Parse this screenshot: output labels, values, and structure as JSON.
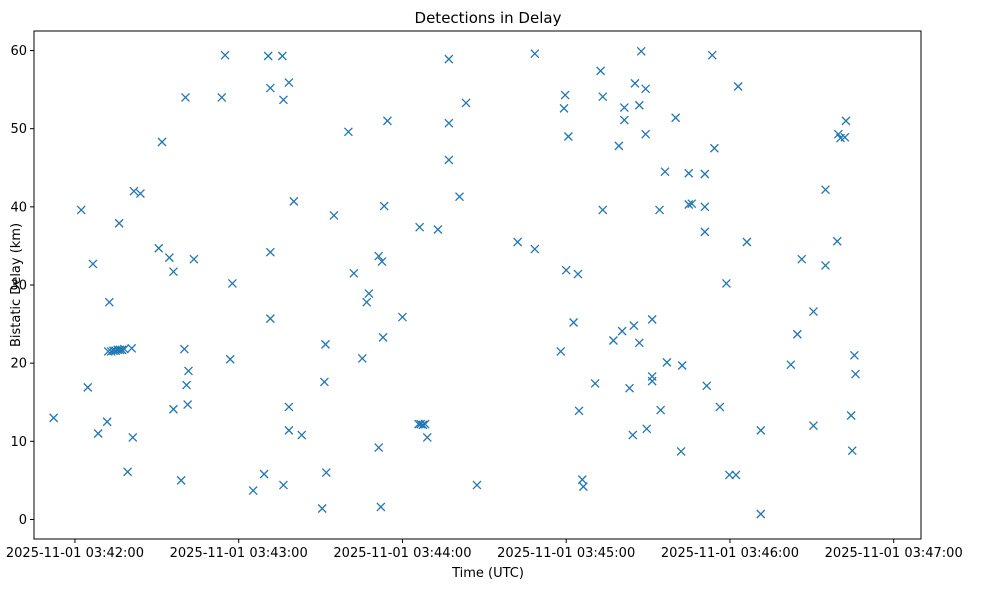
{
  "chart_data": {
    "type": "scatter",
    "title": "Detections in Delay",
    "xlabel": "Time (UTC)",
    "ylabel": "Bistatic Delay (km)",
    "marker": "x",
    "color": "#1f77b4",
    "x_unit": "seconds after 2025-11-01 03:42:00 UTC",
    "xlim": [
      -15,
      310
    ],
    "ylim": [
      -2.5,
      62.5
    ],
    "x_ticks": [
      {
        "value": 0,
        "label": "2025-11-01 03:42:00"
      },
      {
        "value": 60,
        "label": "2025-11-01 03:43:00"
      },
      {
        "value": 120,
        "label": "2025-11-01 03:44:00"
      },
      {
        "value": 180,
        "label": "2025-11-01 03:45:00"
      },
      {
        "value": 240,
        "label": "2025-11-01 03:46:00"
      },
      {
        "value": 300,
        "label": "2025-11-01 03:47:00"
      }
    ],
    "y_ticks": [
      {
        "value": 0,
        "label": "0"
      },
      {
        "value": 10,
        "label": "10"
      },
      {
        "value": 20,
        "label": "20"
      },
      {
        "value": 30,
        "label": "30"
      },
      {
        "value": 40,
        "label": "40"
      },
      {
        "value": 50,
        "label": "50"
      },
      {
        "value": 60,
        "label": "60"
      }
    ],
    "points": [
      [
        -7.8,
        13.0
      ],
      [
        2.3,
        39.6
      ],
      [
        4.7,
        16.9
      ],
      [
        6.6,
        32.7
      ],
      [
        8.5,
        11.0
      ],
      [
        11.8,
        12.5
      ],
      [
        12.6,
        27.8
      ],
      [
        12.2,
        21.5
      ],
      [
        13.3,
        21.5
      ],
      [
        14.1,
        21.6
      ],
      [
        14.9,
        21.6
      ],
      [
        15.7,
        21.7
      ],
      [
        16.5,
        21.7
      ],
      [
        17.3,
        21.7
      ],
      [
        18.1,
        21.8
      ],
      [
        16.2,
        37.9
      ],
      [
        19.3,
        6.1
      ],
      [
        20.8,
        21.9
      ],
      [
        21.2,
        10.5
      ],
      [
        21.6,
        42.0
      ],
      [
        24.0,
        41.7
      ],
      [
        30.7,
        34.7
      ],
      [
        31.9,
        48.3
      ],
      [
        34.6,
        33.5
      ],
      [
        36.1,
        31.7
      ],
      [
        36.1,
        14.1
      ],
      [
        38.9,
        5.0
      ],
      [
        40.1,
        21.8
      ],
      [
        40.5,
        54.0
      ],
      [
        40.9,
        17.2
      ],
      [
        41.3,
        14.7
      ],
      [
        41.6,
        19.0
      ],
      [
        43.6,
        33.3
      ],
      [
        53.8,
        54.0
      ],
      [
        55.0,
        59.4
      ],
      [
        56.9,
        20.5
      ],
      [
        57.7,
        30.2
      ],
      [
        65.3,
        3.7
      ],
      [
        69.3,
        5.8
      ],
      [
        70.8,
        59.3
      ],
      [
        71.6,
        55.2
      ],
      [
        71.6,
        34.2
      ],
      [
        71.6,
        25.7
      ],
      [
        76.0,
        59.3
      ],
      [
        76.4,
        53.7
      ],
      [
        76.4,
        4.4
      ],
      [
        78.4,
        55.9
      ],
      [
        78.4,
        14.4
      ],
      [
        78.4,
        11.4
      ],
      [
        80.2,
        40.7
      ],
      [
        83.1,
        10.8
      ],
      [
        90.6,
        1.4
      ],
      [
        91.4,
        17.6
      ],
      [
        91.8,
        22.4
      ],
      [
        92.1,
        6.0
      ],
      [
        94.9,
        38.9
      ],
      [
        100.2,
        49.6
      ],
      [
        102.2,
        31.5
      ],
      [
        105.3,
        20.6
      ],
      [
        106.9,
        27.8
      ],
      [
        107.7,
        28.9
      ],
      [
        111.3,
        33.7
      ],
      [
        111.3,
        9.2
      ],
      [
        112.1,
        1.6
      ],
      [
        112.5,
        33.0
      ],
      [
        112.9,
        23.3
      ],
      [
        113.3,
        40.1
      ],
      [
        114.5,
        51.0
      ],
      [
        120.0,
        25.9
      ],
      [
        125.9,
        12.2
      ],
      [
        126.3,
        37.4
      ],
      [
        126.7,
        12.2
      ],
      [
        127.5,
        12.1
      ],
      [
        128.3,
        12.2
      ],
      [
        129.1,
        10.5
      ],
      [
        133.0,
        37.1
      ],
      [
        137.0,
        58.9
      ],
      [
        137.0,
        50.7
      ],
      [
        137.0,
        46.0
      ],
      [
        140.9,
        41.3
      ],
      [
        143.3,
        53.3
      ],
      [
        147.3,
        4.4
      ],
      [
        162.2,
        35.5
      ],
      [
        168.5,
        59.6
      ],
      [
        168.5,
        34.6
      ],
      [
        178.0,
        21.5
      ],
      [
        179.2,
        52.6
      ],
      [
        179.6,
        54.3
      ],
      [
        180.0,
        31.9
      ],
      [
        180.8,
        49.0
      ],
      [
        182.7,
        25.2
      ],
      [
        184.3,
        31.4
      ],
      [
        184.7,
        13.9
      ],
      [
        185.9,
        5.1
      ],
      [
        186.3,
        4.2
      ],
      [
        190.6,
        17.4
      ],
      [
        192.6,
        57.4
      ],
      [
        193.4,
        54.1
      ],
      [
        193.4,
        39.6
      ],
      [
        197.3,
        22.9
      ],
      [
        199.3,
        47.8
      ],
      [
        200.5,
        24.1
      ],
      [
        201.3,
        52.7
      ],
      [
        201.3,
        51.1
      ],
      [
        203.2,
        16.8
      ],
      [
        204.4,
        10.8
      ],
      [
        204.8,
        24.8
      ],
      [
        205.2,
        55.8
      ],
      [
        206.8,
        53.0
      ],
      [
        206.8,
        22.6
      ],
      [
        207.5,
        59.9
      ],
      [
        209.1,
        55.1
      ],
      [
        209.1,
        49.3
      ],
      [
        209.5,
        11.6
      ],
      [
        211.5,
        25.6
      ],
      [
        211.5,
        18.3
      ],
      [
        211.5,
        17.7
      ],
      [
        214.2,
        39.6
      ],
      [
        214.6,
        14.0
      ],
      [
        216.2,
        44.5
      ],
      [
        216.9,
        20.1
      ],
      [
        220.1,
        51.4
      ],
      [
        222.1,
        8.7
      ],
      [
        222.5,
        19.7
      ],
      [
        224.9,
        44.3
      ],
      [
        224.9,
        40.3
      ],
      [
        226.0,
        40.4
      ],
      [
        230.8,
        44.2
      ],
      [
        230.8,
        40.0
      ],
      [
        230.8,
        36.8
      ],
      [
        231.5,
        17.1
      ],
      [
        233.5,
        59.4
      ],
      [
        234.3,
        47.5
      ],
      [
        236.3,
        14.4
      ],
      [
        238.7,
        30.2
      ],
      [
        239.8,
        5.7
      ],
      [
        242.2,
        5.7
      ],
      [
        243.0,
        55.4
      ],
      [
        246.2,
        35.5
      ],
      [
        251.3,
        11.4
      ],
      [
        251.3,
        0.7
      ],
      [
        262.3,
        19.8
      ],
      [
        264.7,
        23.7
      ],
      [
        266.3,
        33.3
      ],
      [
        270.6,
        26.6
      ],
      [
        270.6,
        12.0
      ],
      [
        275.0,
        32.5
      ],
      [
        275.0,
        42.2
      ],
      [
        279.3,
        35.6
      ],
      [
        279.7,
        49.3
      ],
      [
        280.5,
        48.8
      ],
      [
        282.1,
        48.9
      ],
      [
        282.5,
        51.0
      ],
      [
        284.4,
        13.3
      ],
      [
        284.8,
        8.8
      ],
      [
        285.6,
        21.0
      ],
      [
        286.0,
        18.6
      ]
    ]
  }
}
